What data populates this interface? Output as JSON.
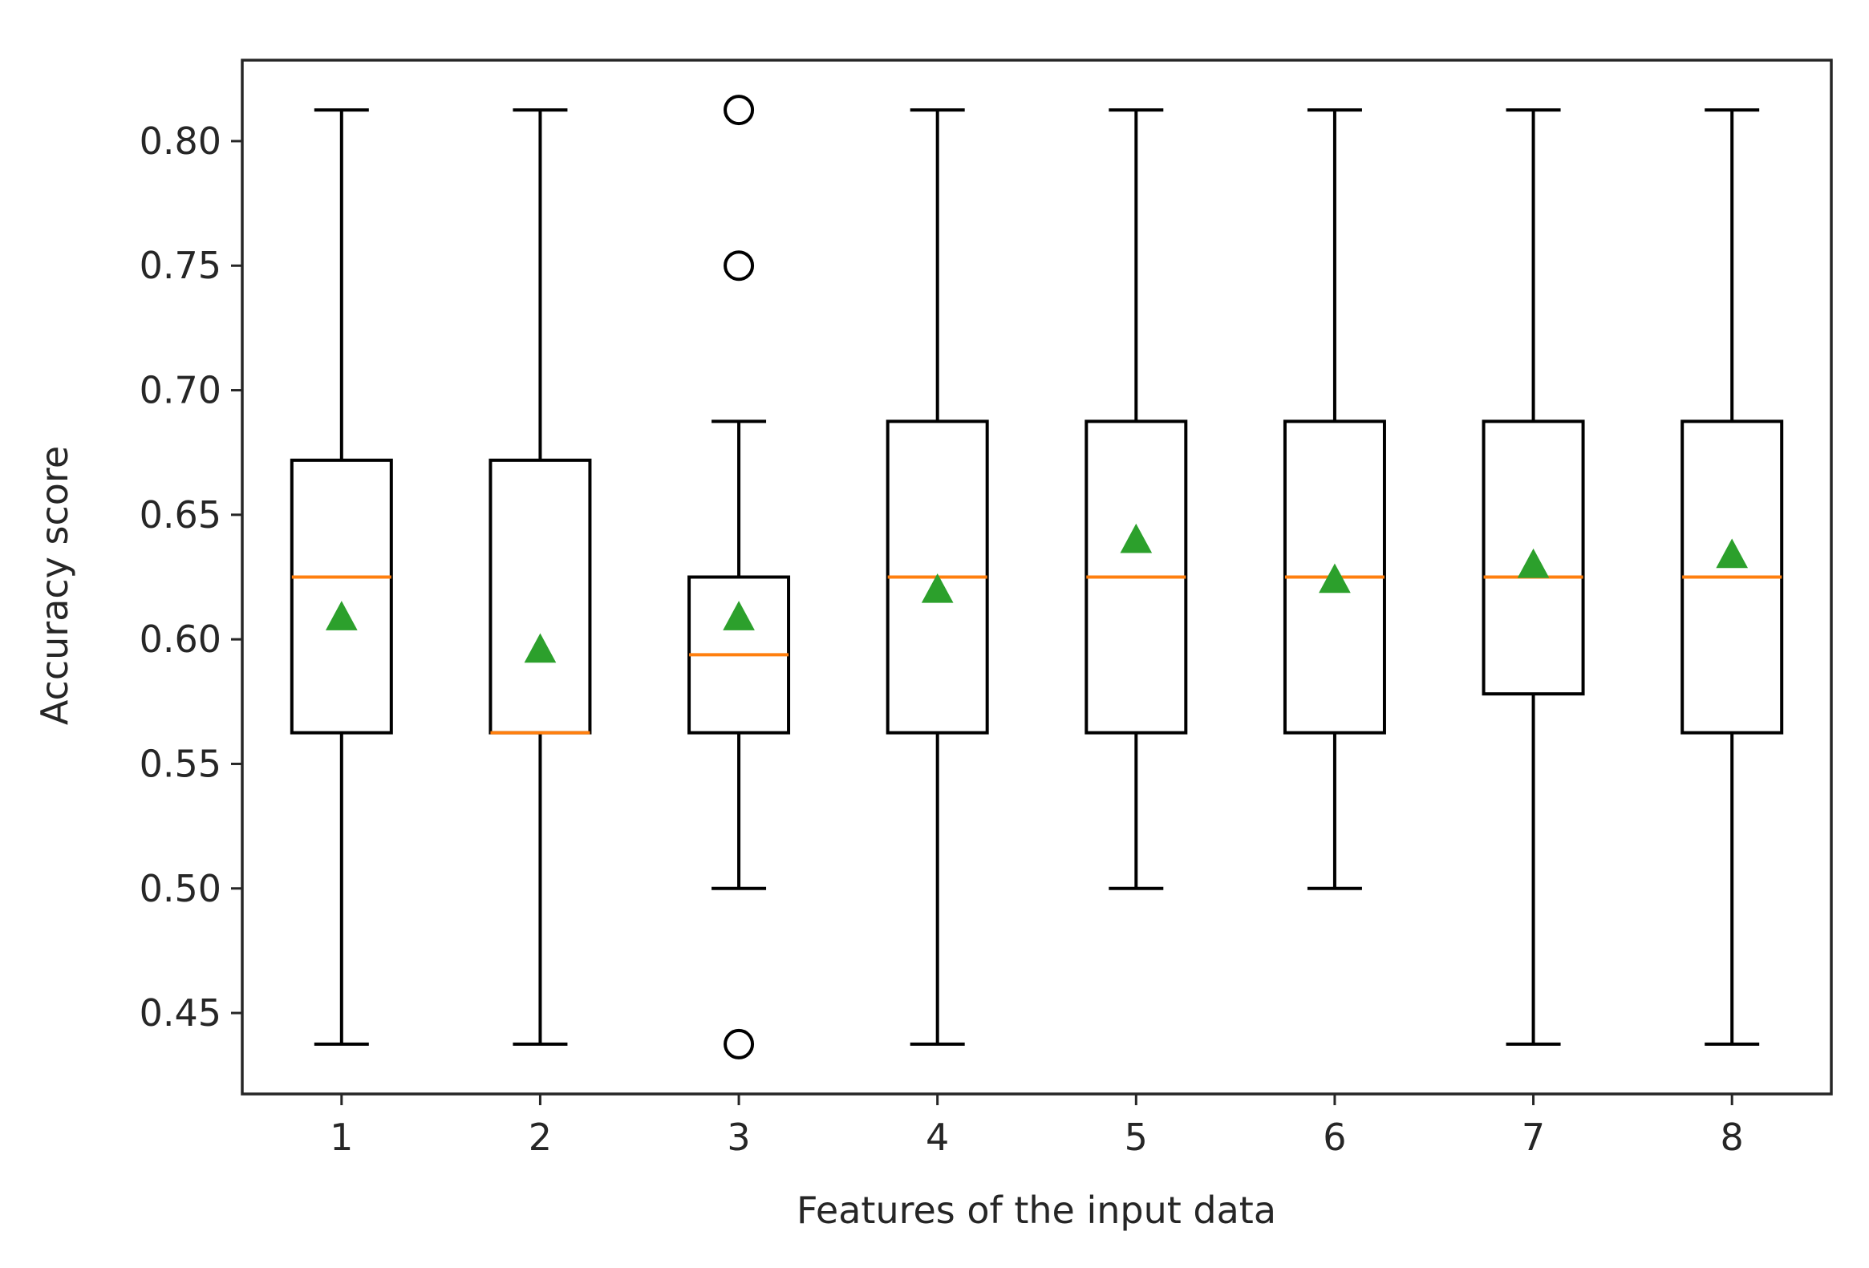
{
  "chart_data": {
    "type": "box",
    "title": "",
    "xlabel": "Features of the input data",
    "ylabel": "Accuracy score",
    "ylim": [
      0.4175,
      0.8325
    ],
    "xlim": [
      0.5,
      8.5
    ],
    "yticks": [
      0.45,
      0.5,
      0.55,
      0.6,
      0.65,
      0.7,
      0.75,
      0.8
    ],
    "ytick_labels": [
      "0.45",
      "0.50",
      "0.55",
      "0.60",
      "0.65",
      "0.70",
      "0.75",
      "0.80"
    ],
    "categories": [
      "1",
      "2",
      "3",
      "4",
      "5",
      "6",
      "7",
      "8"
    ],
    "grid": false,
    "legend": "none",
    "colors": {
      "box": "#000000",
      "median": "#ff7f0e",
      "mean": "#2ca02c",
      "flier": "#000000",
      "text": "#262626"
    },
    "boxes": [
      {
        "category": "1",
        "whisker_low": 0.4375,
        "q1": 0.5625,
        "median": 0.625,
        "q3": 0.6719,
        "whisker_high": 0.8125,
        "mean": 0.609,
        "outliers": []
      },
      {
        "category": "2",
        "whisker_low": 0.4375,
        "q1": 0.5625,
        "median": 0.5625,
        "q3": 0.6719,
        "whisker_high": 0.8125,
        "mean": 0.596,
        "outliers": []
      },
      {
        "category": "3",
        "whisker_low": 0.5,
        "q1": 0.5625,
        "median": 0.5938,
        "q3": 0.625,
        "whisker_high": 0.6875,
        "mean": 0.609,
        "outliers": [
          0.4375,
          0.75,
          0.8125
        ]
      },
      {
        "category": "4",
        "whisker_low": 0.4375,
        "q1": 0.5625,
        "median": 0.625,
        "q3": 0.6875,
        "whisker_high": 0.8125,
        "mean": 0.62,
        "outliers": []
      },
      {
        "category": "5",
        "whisker_low": 0.5,
        "q1": 0.5625,
        "median": 0.625,
        "q3": 0.6875,
        "whisker_high": 0.8125,
        "mean": 0.64,
        "outliers": []
      },
      {
        "category": "6",
        "whisker_low": 0.5,
        "q1": 0.5625,
        "median": 0.625,
        "q3": 0.6875,
        "whisker_high": 0.8125,
        "mean": 0.624,
        "outliers": []
      },
      {
        "category": "7",
        "whisker_low": 0.4375,
        "q1": 0.5781,
        "median": 0.625,
        "q3": 0.6875,
        "whisker_high": 0.8125,
        "mean": 0.63,
        "outliers": []
      },
      {
        "category": "8",
        "whisker_low": 0.4375,
        "q1": 0.5625,
        "median": 0.625,
        "q3": 0.6875,
        "whisker_high": 0.8125,
        "mean": 0.634,
        "outliers": []
      }
    ]
  }
}
